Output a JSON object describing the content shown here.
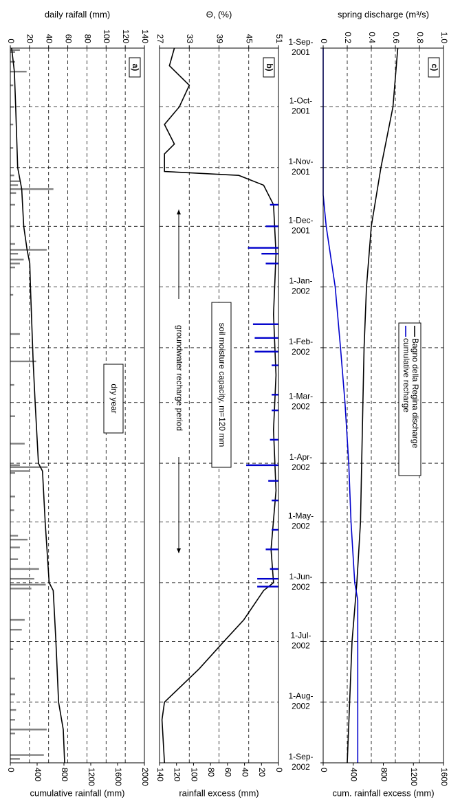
{
  "chart_data": [
    {
      "type": "bar",
      "panel_label": "a)",
      "xlabel": "daily raifall (mm)",
      "x2label": "cumulative rainfall  (mm)",
      "annotation": "dry year",
      "grid": true,
      "xlim": [
        0,
        140
      ],
      "xticks": [
        0,
        20,
        40,
        60,
        80,
        100,
        120,
        140
      ],
      "x2lim": [
        0,
        2000
      ],
      "x2ticks": [
        0,
        400,
        800,
        1200,
        1600,
        2000
      ],
      "ylim": [
        "2001-09-01",
        "2002-09-01"
      ],
      "series": [
        {
          "type": "bar",
          "axis": "x",
          "color": "#808080",
          "y": [
            "2001-09-02",
            "2001-09-03",
            "2001-09-08",
            "2001-09-13",
            "2001-09-20",
            "2001-10-01",
            "2001-10-10",
            "2001-10-22",
            "2001-11-05",
            "2001-11-08",
            "2001-11-10",
            "2001-11-12",
            "2001-11-14",
            "2001-11-20",
            "2001-12-01",
            "2001-12-10",
            "2001-12-13",
            "2001-12-15",
            "2001-12-18",
            "2001-12-20",
            "2001-12-22",
            "2002-01-05",
            "2002-01-25",
            "2002-02-08",
            "2002-02-20",
            "2002-03-08",
            "2002-03-22",
            "2002-04-02",
            "2002-04-03",
            "2002-04-05",
            "2002-04-06",
            "2002-04-18",
            "2002-04-25",
            "2002-05-08",
            "2002-05-10",
            "2002-05-14",
            "2002-05-20",
            "2002-05-25",
            "2002-05-30",
            "2002-06-02",
            "2002-06-04",
            "2002-06-20",
            "2002-06-25",
            "2002-07-05",
            "2002-07-20",
            "2002-07-28",
            "2002-08-05",
            "2002-08-10",
            "2002-08-15",
            "2002-08-17",
            "2002-08-28",
            "2002-08-30"
          ],
          "values": [
            10,
            5,
            5,
            17,
            3,
            4,
            3,
            3,
            4,
            10,
            8,
            45,
            6,
            5,
            4,
            5,
            38,
            8,
            14,
            10,
            5,
            3,
            10,
            27,
            4,
            5,
            15,
            10,
            39,
            20,
            5,
            5,
            4,
            8,
            18,
            10,
            8,
            30,
            25,
            37,
            22,
            15,
            12,
            3,
            5,
            5,
            6,
            5,
            38,
            5,
            35,
            10
          ]
        },
        {
          "type": "line",
          "axis": "x2",
          "color": "#000000",
          "y": [
            "2001-09-01",
            "2001-09-13",
            "2001-10-01",
            "2001-11-01",
            "2001-11-12",
            "2001-12-01",
            "2001-12-13",
            "2001-12-20",
            "2002-01-01",
            "2002-02-08",
            "2002-03-01",
            "2002-04-01",
            "2002-04-05",
            "2002-05-01",
            "2002-06-01",
            "2002-06-05",
            "2002-07-01",
            "2002-08-01",
            "2002-08-15",
            "2002-09-01"
          ],
          "values": [
            20,
            60,
            80,
            110,
            170,
            200,
            250,
            290,
            300,
            340,
            370,
            420,
            480,
            520,
            580,
            640,
            680,
            720,
            790,
            810
          ]
        }
      ]
    },
    {
      "type": "line",
      "panel_label": "b)",
      "xlabel": "Θ, (%)",
      "x2label": "rainfall excess (mm)",
      "annotations": [
        "groundwater recharge period",
        "soil moisture capacity,  m=120 mm"
      ],
      "grid": true,
      "xlim": [
        27,
        51
      ],
      "xticks": [
        27,
        33,
        39,
        45,
        51
      ],
      "x2lim": [
        140,
        0
      ],
      "x2ticks": [
        140,
        120,
        100,
        80,
        60,
        40,
        20,
        0
      ],
      "ylim": [
        "2001-09-01",
        "2002-09-01"
      ],
      "series": [
        {
          "type": "line",
          "axis": "x",
          "color": "#000000",
          "y": [
            "2001-09-01",
            "2001-09-10",
            "2001-09-20",
            "2001-10-01",
            "2001-10-10",
            "2001-10-20",
            "2001-10-25",
            "2001-11-03",
            "2001-11-05",
            "2001-11-10",
            "2001-11-20",
            "2001-12-15",
            "2002-01-15",
            "2002-02-15",
            "2002-03-15",
            "2002-04-15",
            "2002-05-15",
            "2002-06-01",
            "2002-06-05",
            "2002-06-20",
            "2002-07-01",
            "2002-07-15",
            "2002-08-01",
            "2002-08-10",
            "2002-09-01"
          ],
          "values": [
            30,
            29,
            33,
            31,
            28,
            30,
            28,
            28,
            43,
            48,
            50,
            50.5,
            50,
            50.5,
            50,
            50.5,
            49.5,
            50,
            48,
            44,
            40,
            35,
            28,
            27.5,
            28
          ]
        },
        {
          "type": "bar",
          "axis": "x2",
          "color": "#0000cc",
          "y": [
            "2001-11-20",
            "2001-12-01",
            "2001-12-12",
            "2001-12-15",
            "2001-12-20",
            "2002-01-20",
            "2002-01-27",
            "2002-02-03",
            "2002-02-10",
            "2002-02-25",
            "2002-03-05",
            "2002-03-20",
            "2002-04-02",
            "2002-04-10",
            "2002-04-20",
            "2002-05-05",
            "2002-05-15",
            "2002-05-25",
            "2002-05-30",
            "2002-06-03"
          ],
          "values": [
            10,
            15,
            36,
            20,
            15,
            30,
            28,
            28,
            8,
            8,
            8,
            10,
            38,
            12,
            8,
            8,
            15,
            10,
            25,
            25
          ]
        }
      ]
    },
    {
      "type": "line",
      "panel_label": "c)",
      "xlabel": "spring  discharge (m³/s)",
      "x2label": "cum. rainfall excess (mm)",
      "grid": true,
      "legend": "center right",
      "xlim": [
        0,
        1
      ],
      "xticks": [
        0,
        0.2,
        0.4,
        0.6,
        0.8,
        {
          "value": 1,
          "label": "1.0"
        }
      ],
      "x2lim": [
        0,
        1600
      ],
      "x2ticks": [
        0,
        400,
        800,
        1200,
        1600
      ],
      "ylim": [
        "2001-09-01",
        "2002-09-01"
      ],
      "yticks": [
        {
          "value": "2001-09-01",
          "label": "1-Sep-2001"
        },
        {
          "value": "2001-10-01",
          "label": "1-Oct-2001"
        },
        {
          "value": "2001-11-01",
          "label": "1-Nov-2001"
        },
        {
          "value": "2001-12-01",
          "label": "1-Dec-2001"
        },
        {
          "value": "2002-01-01",
          "label": "1-Jan-2002"
        },
        {
          "value": "2002-02-01",
          "label": "1-Feb-2002"
        },
        {
          "value": "2002-03-01",
          "label": "1-Mar-2002"
        },
        {
          "value": "2002-04-01",
          "label": "1-Apr-2002"
        },
        {
          "value": "2002-05-01",
          "label": "1-May-2002"
        },
        {
          "value": "2002-06-01",
          "label": "1-Jun-2002"
        },
        {
          "value": "2002-07-01",
          "label": "1-Jul-2002"
        },
        {
          "value": "2002-08-01",
          "label": "1-Aug-2002"
        },
        {
          "value": "2002-09-01",
          "label": "1-Sep-2002"
        }
      ],
      "series": [
        {
          "name": "Bagno della Regina discharge",
          "type": "line",
          "axis": "x",
          "color": "#000000",
          "y": [
            "2001-09-01",
            "2001-10-01",
            "2001-11-01",
            "2001-12-01",
            "2002-01-01",
            "2002-02-01",
            "2002-03-01",
            "2002-04-01",
            "2002-05-01",
            "2002-06-01",
            "2002-07-01",
            "2002-08-01",
            "2002-09-01"
          ],
          "values": [
            0.62,
            0.58,
            0.48,
            0.4,
            0.36,
            0.34,
            0.33,
            0.32,
            0.31,
            0.28,
            0.24,
            0.22,
            0.2
          ]
        },
        {
          "name": "cumulative recharge",
          "type": "line",
          "axis": "x2",
          "color": "#0000cc",
          "y": [
            "2001-09-01",
            "2001-11-15",
            "2001-12-01",
            "2002-01-01",
            "2002-02-01",
            "2002-03-01",
            "2002-04-01",
            "2002-05-01",
            "2002-06-01",
            "2002-06-10",
            "2002-09-01"
          ],
          "values": [
            0,
            0,
            40,
            160,
            230,
            290,
            340,
            370,
            420,
            460,
            460
          ]
        }
      ]
    }
  ]
}
